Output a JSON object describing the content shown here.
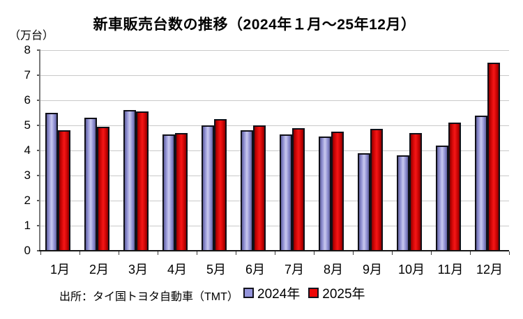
{
  "title": "新車販売台数の推移（2024年１月～25年12月）",
  "y_axis_unit_label": "（万台）",
  "source_label": "出所：タイ国トヨタ自動車（TMT）",
  "legend": [
    {
      "label": "2024年",
      "color": "#9595dc"
    },
    {
      "label": "2025年",
      "color": "#ee0707"
    }
  ],
  "colors": {
    "bar_2024_edge": "#63639f",
    "bar_2024_mid": "#8f8fd2",
    "bar_2024_center": "#c9c9ef",
    "bar_2025_edge": "#8e0000",
    "bar_2025_mid": "#cc0505",
    "bar_2025_center": "#f51616",
    "bar_border": "#101018",
    "gridline": "#c9c9c9",
    "y_axis_line": "#7a7a7a",
    "x_axis_line": "#151515",
    "text": "#000000"
  },
  "chart_data": {
    "type": "bar",
    "categories": [
      "1月",
      "2月",
      "3月",
      "4月",
      "5月",
      "6月",
      "7月",
      "8月",
      "9月",
      "10月",
      "11月",
      "12月"
    ],
    "series": [
      {
        "name": "2024年",
        "values": [
          5.5,
          5.3,
          5.6,
          4.65,
          5.0,
          4.8,
          4.65,
          4.55,
          3.9,
          3.8,
          4.2,
          5.4
        ]
      },
      {
        "name": "2025年",
        "values": [
          4.8,
          4.95,
          5.55,
          4.7,
          5.25,
          5.0,
          4.9,
          4.75,
          4.85,
          4.7,
          5.1,
          7.5
        ]
      }
    ],
    "title": "新車販売台数の推移（2024年１月～25年12月）",
    "xlabel": "",
    "ylabel": "（万台）",
    "ylim": [
      0,
      8
    ],
    "yticks": [
      0,
      1,
      2,
      3,
      4,
      5,
      6,
      7,
      8
    ],
    "grid": true,
    "legend_position": "bottom"
  }
}
